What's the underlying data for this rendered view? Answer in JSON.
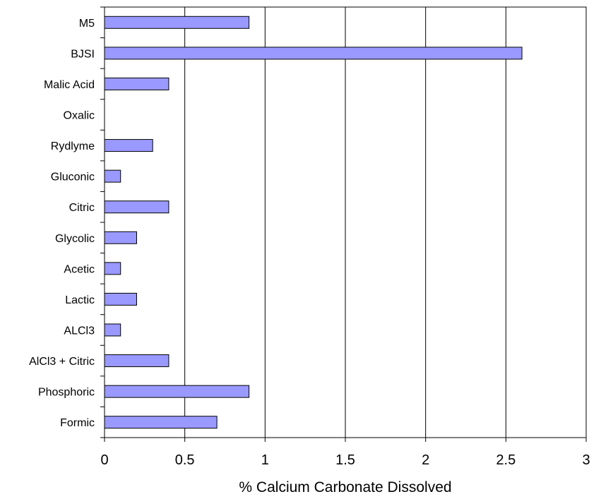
{
  "chart_data": {
    "type": "bar",
    "orientation": "horizontal",
    "title": "",
    "xlabel": "% Calcium Carbonate Dissolved",
    "ylabel": "",
    "categories": [
      "M5",
      "BJSI",
      "Malic Acid",
      "Oxalic",
      "Rydlyme",
      "Gluconic",
      "Citric",
      "Glycolic",
      "Acetic",
      "Lactic",
      "ALCl3",
      "AlCl3 + Citric",
      "Phosphoric",
      "Formic"
    ],
    "values": [
      0.9,
      2.6,
      0.4,
      0,
      0.3,
      0.1,
      0.4,
      0.2,
      0.1,
      0.2,
      0.1,
      0.4,
      0.9,
      0.7
    ],
    "xlim": [
      0,
      3
    ],
    "xticks": [
      "0",
      "0.5",
      "1",
      "1.5",
      "2",
      "2.5",
      "3"
    ],
    "xtick_values": [
      0,
      0.5,
      1,
      1.5,
      2,
      2.5,
      3
    ],
    "grid": "vertical",
    "legend": "none",
    "bar_color": "#9999ff",
    "bar_edge_color": "#000000"
  }
}
